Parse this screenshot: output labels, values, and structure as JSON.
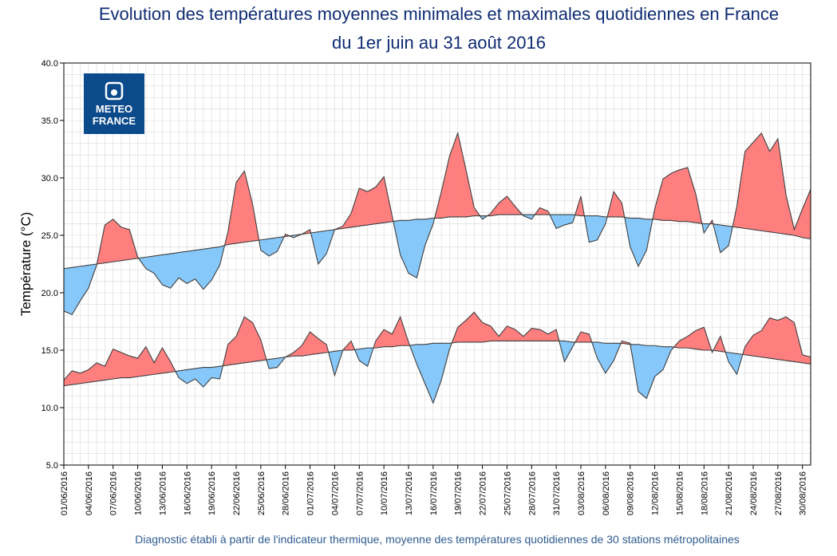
{
  "title_line1": "Evolution des températures moyennes minimales et maximales quotidiennes en France",
  "title_line2": "du 1er juin au 31 août 2016",
  "footer": "Diagnostic établi à partir de l'indicateur thermique, moyenne des températures quotidiennes de 30 stations métropolitaines",
  "logo": {
    "line1": "METEO",
    "line2": "FRANCE",
    "background": "#0b4a8b",
    "icon": "meteo-france-logo-icon"
  },
  "colors": {
    "above_normal": "#ff7f7f",
    "below_normal": "#87c8fa",
    "curve": "#3f3f3f",
    "grid": "#d9d9d9",
    "title": "#0f2c72",
    "footer": "#2e5b8f"
  },
  "chart_data": {
    "type": "area",
    "title": "Evolution des températures moyennes minimales et maximales quotidiennes en France du 1er juin au 31 août 2016",
    "xlabel": "",
    "ylabel": "Température (°C)",
    "ylim": [
      5.0,
      40.0
    ],
    "yticks": [
      "5.0",
      "10.0",
      "15.0",
      "20.0",
      "25.0",
      "30.0",
      "35.0",
      "40.0"
    ],
    "xlim": [
      "01/06/2016",
      "31/08/2016"
    ],
    "xticks": [
      "01/06/2016",
      "04/06/2016",
      "07/06/2016",
      "10/06/2016",
      "13/06/2016",
      "16/06/2016",
      "19/06/2016",
      "22/06/2016",
      "25/06/2016",
      "28/06/2016",
      "01/07/2016",
      "04/07/2016",
      "07/07/2016",
      "10/07/2016",
      "13/07/2016",
      "16/07/2016",
      "19/07/2016",
      "22/07/2016",
      "25/07/2016",
      "28/07/2016",
      "31/07/2016",
      "03/08/2016",
      "06/08/2016",
      "09/08/2016",
      "12/08/2016",
      "15/08/2016",
      "18/08/2016",
      "21/08/2016",
      "24/08/2016",
      "27/08/2016",
      "30/08/2016"
    ],
    "grid": true,
    "series": [
      {
        "values": [
          18.4,
          18.1,
          19.3,
          20.4,
          22.4,
          25.9,
          26.4,
          25.7,
          25.5,
          23.1,
          22.1,
          21.7,
          20.7,
          20.4,
          21.3,
          20.8,
          21.2,
          20.3,
          21.1,
          22.4,
          25.3,
          29.6,
          30.6,
          27.7,
          23.7,
          23.2,
          23.6,
          25.1,
          24.8,
          25.1,
          25.5,
          22.5,
          23.4,
          25.5,
          25.8,
          26.9,
          29.1,
          28.8,
          29.2,
          30.1,
          26.7,
          23.3,
          21.7,
          21.3,
          24.1,
          26.0,
          28.8,
          31.9,
          33.9,
          30.7,
          27.4,
          26.4,
          26.9,
          27.8,
          28.4,
          27.5,
          26.7,
          26.4,
          27.4,
          27.1,
          25.6,
          25.9,
          26.1,
          28.4,
          24.4,
          24.6,
          26.0,
          28.8,
          27.8,
          24.0,
          22.3,
          23.7,
          27.3,
          29.9,
          30.4,
          30.7,
          30.9,
          28.6,
          25.2,
          26.3,
          23.5,
          24.1,
          27.5,
          32.3,
          33.1,
          33.9,
          32.3,
          33.4,
          28.5,
          25.5,
          27.3,
          29.0
        ],
        "color": "#ff7f7f"
      },
      {
        "values": [
          22.1,
          22.2,
          22.3,
          22.4,
          22.5,
          22.6,
          22.7,
          22.8,
          22.9,
          23.0,
          23.1,
          23.2,
          23.3,
          23.4,
          23.5,
          23.6,
          23.7,
          23.8,
          23.9,
          24.0,
          24.2,
          24.3,
          24.4,
          24.5,
          24.6,
          24.7,
          24.8,
          24.9,
          25.0,
          25.1,
          25.2,
          25.3,
          25.4,
          25.5,
          25.6,
          25.7,
          25.8,
          25.9,
          26.0,
          26.1,
          26.2,
          26.3,
          26.3,
          26.4,
          26.4,
          26.5,
          26.5,
          26.6,
          26.6,
          26.6,
          26.7,
          26.7,
          26.7,
          26.8,
          26.8,
          26.8,
          26.8,
          26.8,
          26.8,
          26.8,
          26.8,
          26.8,
          26.8,
          26.7,
          26.7,
          26.7,
          26.6,
          26.6,
          26.6,
          26.5,
          26.5,
          26.4,
          26.4,
          26.3,
          26.3,
          26.2,
          26.2,
          26.1,
          26.0,
          26.0,
          25.9,
          25.8,
          25.7,
          25.6,
          25.5,
          25.4,
          25.3,
          25.2,
          25.1,
          25.0,
          24.8,
          24.7
        ],
        "color": "#3f3f3f"
      },
      {
        "values": [
          12.4,
          13.2,
          13.0,
          13.3,
          13.9,
          13.6,
          15.1,
          14.8,
          14.5,
          14.3,
          15.3,
          13.9,
          15.2,
          14.0,
          12.6,
          12.1,
          12.5,
          11.8,
          12.6,
          12.5,
          15.5,
          16.2,
          17.9,
          17.4,
          15.9,
          13.4,
          13.5,
          14.4,
          14.8,
          15.4,
          16.6,
          16.0,
          15.5,
          12.8,
          15.0,
          15.8,
          14.1,
          13.6,
          15.8,
          16.8,
          16.4,
          17.9,
          15.7,
          13.8,
          12.1,
          10.4,
          12.4,
          15.1,
          17.0,
          17.6,
          18.3,
          17.4,
          17.1,
          16.2,
          17.1,
          16.8,
          16.2,
          16.9,
          16.8,
          16.4,
          16.8,
          14.0,
          15.3,
          16.6,
          16.4,
          14.3,
          13.0,
          14.1,
          15.8,
          15.6,
          11.4,
          10.8,
          12.7,
          13.3,
          15.0,
          15.8,
          16.2,
          16.7,
          17.0,
          14.8,
          16.2,
          14.0,
          12.9,
          15.3,
          16.3,
          16.7,
          17.8,
          17.6,
          17.9,
          17.4,
          14.6,
          14.4
        ],
        "color": "#ff7f7f"
      },
      {
        "values": [
          11.9,
          12.0,
          12.1,
          12.2,
          12.3,
          12.4,
          12.5,
          12.6,
          12.6,
          12.7,
          12.8,
          12.9,
          13.0,
          13.1,
          13.2,
          13.3,
          13.4,
          13.5,
          13.5,
          13.6,
          13.7,
          13.8,
          13.9,
          14.0,
          14.1,
          14.2,
          14.3,
          14.4,
          14.5,
          14.5,
          14.6,
          14.7,
          14.8,
          14.9,
          15.0,
          15.0,
          15.1,
          15.2,
          15.2,
          15.3,
          15.3,
          15.4,
          15.4,
          15.5,
          15.5,
          15.6,
          15.6,
          15.6,
          15.7,
          15.7,
          15.7,
          15.7,
          15.8,
          15.8,
          15.8,
          15.8,
          15.8,
          15.8,
          15.8,
          15.8,
          15.8,
          15.8,
          15.7,
          15.7,
          15.7,
          15.7,
          15.6,
          15.6,
          15.6,
          15.5,
          15.5,
          15.4,
          15.4,
          15.3,
          15.3,
          15.2,
          15.2,
          15.1,
          15.0,
          15.0,
          14.9,
          14.8,
          14.7,
          14.6,
          14.5,
          14.4,
          14.3,
          14.2,
          14.1,
          14.0,
          13.9,
          13.8
        ],
        "color": "#3f3f3f"
      }
    ]
  }
}
